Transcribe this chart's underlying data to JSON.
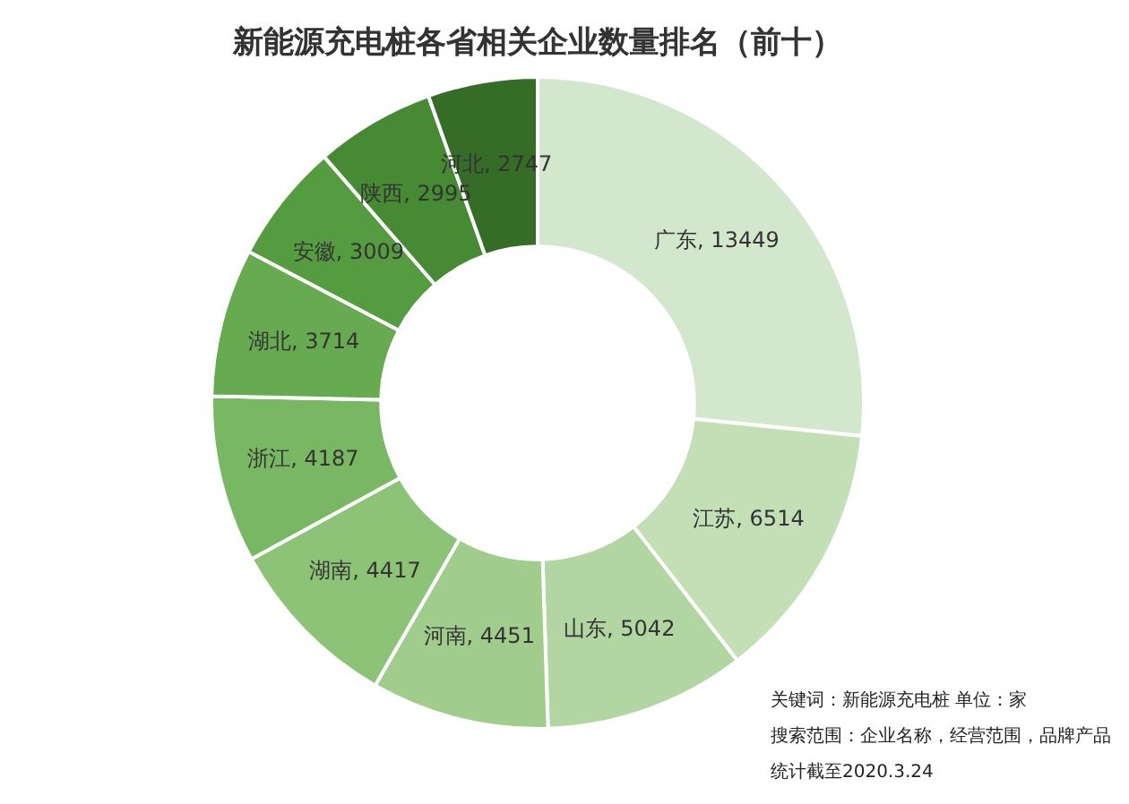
{
  "chart_data": {
    "type": "donut",
    "title": "新能源充电桩各省相关企业数量排名（前十）",
    "categories": [
      "广东",
      "江苏",
      "山东",
      "河南",
      "湖南",
      "浙江",
      "湖北",
      "安徽",
      "陕西",
      "河北"
    ],
    "values": [
      13449,
      6514,
      5042,
      4451,
      4417,
      4187,
      3714,
      3009,
      2995,
      2747
    ],
    "colors": [
      "#d3e7cc",
      "#c2dfb5",
      "#b2d6a2",
      "#a1cd8c",
      "#8cc377",
      "#79b862",
      "#66ab4f",
      "#559c40",
      "#468a33",
      "#356d26"
    ],
    "value_labels": [
      ", 13449",
      ", 6514",
      ", 5042",
      ", 4451",
      ", 4417",
      ", 4187",
      ", 3714",
      ", 3009",
      ", 2995",
      ", 2747"
    ],
    "legend": false,
    "annotations": [
      "关键词：新能源充电桩  单位：家",
      "搜索范围：企业名称，经营范围，品牌产品",
      "统计截至2020.3.24"
    ]
  }
}
